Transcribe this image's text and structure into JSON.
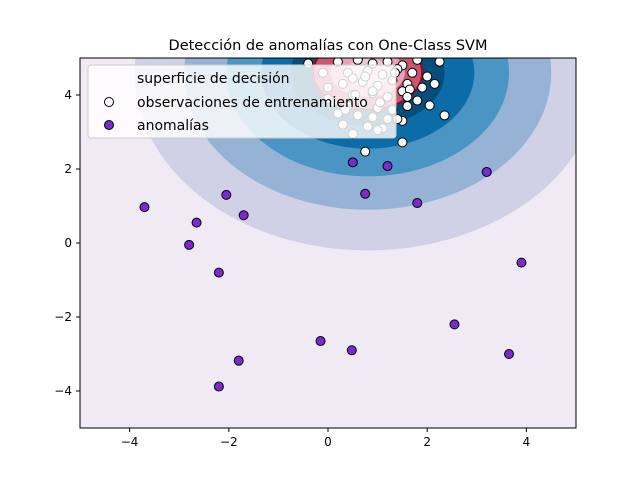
{
  "chart_data": {
    "type": "scatter",
    "title": "Detección de anomalías con One-Class SVM",
    "xlabel": "",
    "ylabel": "",
    "xlim": [
      -5,
      5
    ],
    "ylim": [
      -5,
      5
    ],
    "xticks": [
      -4,
      -2,
      0,
      2,
      4
    ],
    "yticks": [
      -4,
      -2,
      0,
      2,
      4
    ],
    "xtick_labels": [
      "−4",
      "−2",
      "0",
      "2",
      "4"
    ],
    "ytick_labels": [
      "−4",
      "−2",
      "0",
      "2",
      "4"
    ],
    "grid": false,
    "legend_position": "top-left",
    "background": {
      "label": "superficie de decisión",
      "center": [
        0.8,
        4.6
      ],
      "levels": [
        {
          "rx": 4.7,
          "ry": 4.8,
          "color": "#d0d1e6"
        },
        {
          "rx": 3.7,
          "ry": 3.7,
          "color": "#96b3d5"
        },
        {
          "rx": 2.85,
          "ry": 2.8,
          "color": "#4a95c4"
        },
        {
          "rx": 2.15,
          "ry": 2.05,
          "color": "#0b6ca8"
        },
        {
          "rx": 1.55,
          "ry": 1.45,
          "color": "#034e7b"
        },
        {
          "rx": 1.1,
          "ry": 1.0,
          "color": "#c8566e"
        },
        {
          "rx": 0.75,
          "ry": 0.65,
          "color": "#e8a3b8"
        },
        {
          "rx": 0.45,
          "ry": 0.38,
          "color": "#f0c6d4"
        }
      ],
      "outside_color": "#f0eaf4",
      "boundary_color": "#a0001c"
    },
    "series": [
      {
        "name": "observaciones de entrenamiento",
        "marker_face": "#ffffff",
        "marker_edge": "#000000",
        "x": [
          0.2,
          0.6,
          0.9,
          1.2,
          1.5,
          1.8,
          0.4,
          0.8,
          1.1,
          1.4,
          1.7,
          2.0,
          0.3,
          0.7,
          1.0,
          1.3,
          1.6,
          1.9,
          0.5,
          0.9,
          1.2,
          1.5,
          1.8,
          0.1,
          0.4,
          0.7,
          1.0,
          1.3,
          1.6,
          0.2,
          0.6,
          0.9,
          1.2,
          1.5,
          0.3,
          0.8,
          1.1,
          1.4,
          0.5,
          1.0,
          -0.1,
          0.0,
          0.35,
          0.75,
          1.35,
          1.65,
          2.15,
          2.35,
          2.25,
          1.5,
          0.75,
          1.05,
          1.6,
          0.5,
          0.9,
          -0.4,
          0.0,
          0.55,
          2.05
        ],
        "y": [
          4.9,
          4.95,
          4.85,
          4.9,
          4.8,
          4.95,
          4.6,
          4.65,
          4.55,
          4.7,
          4.6,
          4.5,
          4.3,
          4.35,
          4.25,
          4.4,
          4.3,
          4.2,
          4.0,
          4.05,
          3.95,
          4.1,
          3.85,
          3.8,
          3.7,
          3.75,
          3.65,
          3.6,
          3.7,
          3.5,
          3.45,
          3.4,
          3.35,
          3.3,
          3.2,
          3.15,
          3.1,
          3.35,
          2.95,
          3.05,
          4.6,
          4.2,
          3.6,
          4.5,
          4.6,
          4.15,
          4.3,
          3.45,
          4.9,
          2.72,
          2.47,
          3.8,
          3.95,
          4.45,
          4.1,
          4.85,
          3.9,
          4.0,
          3.72
        ]
      },
      {
        "name": "anomalías",
        "marker_face": "#7b2ad0",
        "marker_edge": "#000000",
        "x": [
          -3.7,
          -2.65,
          -2.8,
          -2.05,
          -1.7,
          -2.2,
          0.5,
          0.75,
          1.2,
          1.8,
          3.2,
          3.9,
          2.55,
          3.65,
          -0.15,
          0.48,
          -1.8,
          -2.2
        ],
        "y": [
          0.97,
          0.55,
          -0.05,
          1.3,
          0.75,
          -0.8,
          2.18,
          1.33,
          2.08,
          1.08,
          1.92,
          -0.53,
          -2.2,
          -3.0,
          -2.65,
          -2.9,
          -3.18,
          -3.88
        ]
      }
    ]
  }
}
